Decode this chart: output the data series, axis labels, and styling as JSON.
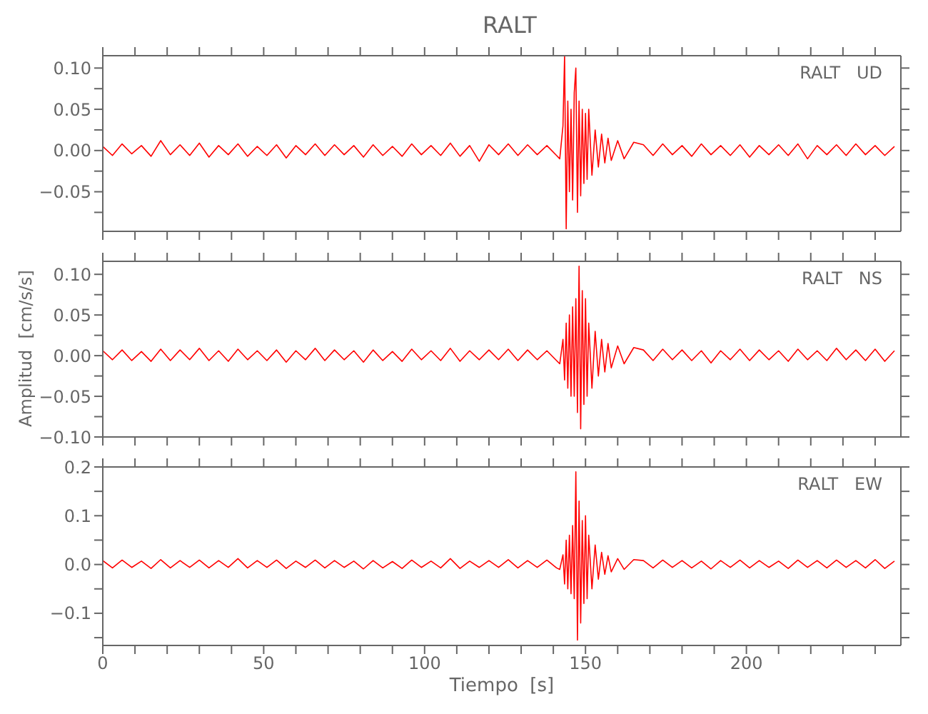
{
  "chart_data": [
    {
      "type": "line",
      "title": "RALT",
      "annotations": [
        "RALT   UD"
      ],
      "tick_labels": "y",
      "x": [
        0,
        3,
        6,
        9,
        12,
        15,
        18,
        21,
        24,
        27,
        30,
        33,
        36,
        39,
        42,
        45,
        48,
        51,
        54,
        57,
        60,
        63,
        66,
        69,
        72,
        75,
        78,
        81,
        84,
        87,
        90,
        93,
        96,
        99,
        102,
        105,
        108,
        111,
        114,
        117,
        120,
        123,
        126,
        129,
        132,
        135,
        138,
        141,
        142,
        143,
        143.5,
        144,
        144.5,
        145,
        145.5,
        146,
        146.5,
        147,
        147.5,
        148,
        148.5,
        149,
        149.5,
        150,
        150.5,
        151,
        152,
        153,
        154,
        155,
        156,
        157,
        158,
        160,
        162,
        165,
        168,
        171,
        174,
        177,
        180,
        183,
        186,
        189,
        192,
        195,
        198,
        201,
        204,
        207,
        210,
        213,
        216,
        219,
        222,
        225,
        228,
        231,
        234,
        237,
        240,
        243,
        246
      ],
      "series": [
        {
          "color": "#ff0000",
          "values": [
            0.005,
            -0.006,
            0.008,
            -0.004,
            0.006,
            -0.007,
            0.012,
            -0.005,
            0.007,
            -0.006,
            0.009,
            -0.008,
            0.006,
            -0.005,
            0.008,
            -0.007,
            0.005,
            -0.006,
            0.007,
            -0.009,
            0.006,
            -0.005,
            0.008,
            -0.006,
            0.007,
            -0.005,
            0.006,
            -0.008,
            0.007,
            -0.006,
            0.005,
            -0.007,
            0.008,
            -0.005,
            0.006,
            -0.006,
            0.009,
            -0.007,
            0.006,
            -0.013,
            0.007,
            -0.005,
            0.008,
            -0.006,
            0.007,
            -0.005,
            0.006,
            -0.006,
            -0.01,
            0.03,
            0.115,
            -0.095,
            0.06,
            -0.05,
            0.05,
            -0.06,
            0.07,
            0.1,
            -0.075,
            0.06,
            -0.055,
            0.05,
            -0.04,
            0.045,
            -0.035,
            0.05,
            -0.03,
            0.025,
            -0.02,
            0.02,
            -0.015,
            0.015,
            -0.012,
            0.012,
            -0.01,
            0.01,
            0.007,
            -0.006,
            0.008,
            -0.005,
            0.006,
            -0.007,
            0.008,
            -0.005,
            0.006,
            -0.006,
            0.007,
            -0.008,
            0.006,
            -0.005,
            0.007,
            -0.006,
            0.008,
            -0.01,
            0.006,
            -0.005,
            0.007,
            -0.006,
            0.008,
            -0.005,
            0.006,
            -0.006,
            0.005
          ]
        }
      ],
      "xlim": [
        0,
        248
      ],
      "xticks": [
        {
          "value": 0,
          "label": null
        },
        {
          "value": 10,
          "label": null
        },
        {
          "value": 20,
          "label": null
        },
        {
          "value": 30,
          "label": null
        },
        {
          "value": 40,
          "label": null
        },
        {
          "value": 50,
          "label": null
        },
        {
          "value": 60,
          "label": null
        },
        {
          "value": 70,
          "label": null
        },
        {
          "value": 80,
          "label": null
        },
        {
          "value": 90,
          "label": null
        },
        {
          "value": 100,
          "label": null
        },
        {
          "value": 110,
          "label": null
        },
        {
          "value": 120,
          "label": null
        },
        {
          "value": 130,
          "label": null
        },
        {
          "value": 140,
          "label": null
        },
        {
          "value": 150,
          "label": null
        },
        {
          "value": 160,
          "label": null
        },
        {
          "value": 170,
          "label": null
        },
        {
          "value": 180,
          "label": null
        },
        {
          "value": 190,
          "label": null
        },
        {
          "value": 200,
          "label": null
        },
        {
          "value": 210,
          "label": null
        },
        {
          "value": 220,
          "label": null
        },
        {
          "value": 230,
          "label": null
        },
        {
          "value": 240,
          "label": null
        }
      ],
      "ylim": [
        -0.098,
        0.115
      ],
      "yticks": [
        {
          "value": -0.075,
          "label": null
        },
        {
          "value": -0.05,
          "label": "−0.05"
        },
        {
          "value": -0.025,
          "label": null
        },
        {
          "value": 0,
          "label": "0.00"
        },
        {
          "value": 0.025,
          "label": null
        },
        {
          "value": 0.05,
          "label": "0.05"
        },
        {
          "value": 0.075,
          "label": null
        },
        {
          "value": 0.1,
          "label": "0.10"
        }
      ]
    },
    {
      "type": "line",
      "ylabel": "Amplitud  [cm/s/s]",
      "annotations": [
        "RALT   NS"
      ],
      "tick_labels": "y",
      "x": [
        0,
        3,
        6,
        9,
        12,
        15,
        18,
        21,
        24,
        27,
        30,
        33,
        36,
        39,
        42,
        45,
        48,
        51,
        54,
        57,
        60,
        63,
        66,
        69,
        72,
        75,
        78,
        81,
        84,
        87,
        90,
        93,
        96,
        99,
        102,
        105,
        108,
        111,
        114,
        117,
        120,
        123,
        126,
        129,
        132,
        135,
        138,
        141,
        142,
        143,
        143.5,
        144,
        144.5,
        145,
        145.5,
        146,
        146.5,
        147,
        147.5,
        148,
        148.5,
        149,
        149.5,
        150,
        150.5,
        151,
        152,
        153,
        154,
        155,
        156,
        157,
        158,
        160,
        162,
        165,
        168,
        171,
        174,
        177,
        180,
        183,
        186,
        189,
        192,
        195,
        198,
        201,
        204,
        207,
        210,
        213,
        216,
        219,
        222,
        225,
        228,
        231,
        234,
        237,
        240,
        243,
        246
      ],
      "series": [
        {
          "color": "#ff0000",
          "values": [
            0.006,
            -0.005,
            0.007,
            -0.006,
            0.005,
            -0.007,
            0.008,
            -0.006,
            0.007,
            -0.005,
            0.009,
            -0.006,
            0.006,
            -0.007,
            0.008,
            -0.005,
            0.006,
            -0.006,
            0.007,
            -0.008,
            0.006,
            -0.005,
            0.009,
            -0.006,
            0.007,
            -0.005,
            0.006,
            -0.008,
            0.007,
            -0.006,
            0.005,
            -0.007,
            0.008,
            -0.005,
            0.006,
            -0.006,
            0.009,
            -0.007,
            0.006,
            -0.005,
            0.007,
            -0.005,
            0.008,
            -0.006,
            0.007,
            -0.005,
            0.006,
            -0.006,
            -0.01,
            0.02,
            -0.03,
            0.04,
            -0.04,
            0.05,
            -0.05,
            0.06,
            -0.05,
            0.07,
            -0.07,
            0.11,
            -0.09,
            0.08,
            -0.06,
            0.07,
            -0.05,
            0.04,
            -0.04,
            0.03,
            -0.025,
            0.02,
            -0.02,
            0.015,
            -0.015,
            0.012,
            -0.01,
            0.01,
            0.007,
            -0.006,
            0.008,
            -0.005,
            0.007,
            -0.006,
            0.006,
            -0.009,
            0.006,
            -0.005,
            0.008,
            -0.006,
            0.007,
            -0.005,
            0.006,
            -0.007,
            0.008,
            -0.005,
            0.006,
            -0.006,
            0.009,
            -0.005,
            0.007,
            -0.006,
            0.008,
            -0.007,
            0.006
          ]
        }
      ],
      "xlim": [
        0,
        248
      ],
      "xticks": [
        {
          "value": 0,
          "label": null
        },
        {
          "value": 10,
          "label": null
        },
        {
          "value": 20,
          "label": null
        },
        {
          "value": 30,
          "label": null
        },
        {
          "value": 40,
          "label": null
        },
        {
          "value": 50,
          "label": null
        },
        {
          "value": 60,
          "label": null
        },
        {
          "value": 70,
          "label": null
        },
        {
          "value": 80,
          "label": null
        },
        {
          "value": 90,
          "label": null
        },
        {
          "value": 100,
          "label": null
        },
        {
          "value": 110,
          "label": null
        },
        {
          "value": 120,
          "label": null
        },
        {
          "value": 130,
          "label": null
        },
        {
          "value": 140,
          "label": null
        },
        {
          "value": 150,
          "label": null
        },
        {
          "value": 160,
          "label": null
        },
        {
          "value": 170,
          "label": null
        },
        {
          "value": 180,
          "label": null
        },
        {
          "value": 190,
          "label": null
        },
        {
          "value": 200,
          "label": null
        },
        {
          "value": 210,
          "label": null
        },
        {
          "value": 220,
          "label": null
        },
        {
          "value": 230,
          "label": null
        },
        {
          "value": 240,
          "label": null
        }
      ],
      "ylim": [
        -0.1,
        0.116
      ],
      "yticks": [
        {
          "value": -0.1,
          "label": "−0.10"
        },
        {
          "value": -0.075,
          "label": null
        },
        {
          "value": -0.05,
          "label": "−0.05"
        },
        {
          "value": -0.025,
          "label": null
        },
        {
          "value": 0,
          "label": "0.00"
        },
        {
          "value": 0.025,
          "label": null
        },
        {
          "value": 0.05,
          "label": "0.05"
        },
        {
          "value": 0.075,
          "label": null
        },
        {
          "value": 0.1,
          "label": "0.10"
        }
      ]
    },
    {
      "type": "line",
      "xlabel": "Tiempo  [s]",
      "annotations": [
        "RALT   EW"
      ],
      "x": [
        0,
        3,
        6,
        9,
        12,
        15,
        18,
        21,
        24,
        27,
        30,
        33,
        36,
        39,
        42,
        45,
        48,
        51,
        54,
        57,
        60,
        63,
        66,
        69,
        72,
        75,
        78,
        81,
        84,
        87,
        90,
        93,
        96,
        99,
        102,
        105,
        108,
        111,
        114,
        117,
        120,
        123,
        126,
        129,
        132,
        135,
        138,
        141,
        142,
        143,
        143.5,
        144,
        144.5,
        145,
        145.5,
        146,
        146.5,
        147,
        147.5,
        148,
        148.5,
        149,
        149.5,
        150,
        150.5,
        151,
        152,
        153,
        154,
        155,
        156,
        157,
        158,
        160,
        162,
        165,
        168,
        171,
        174,
        177,
        180,
        183,
        186,
        189,
        192,
        195,
        198,
        201,
        204,
        207,
        210,
        213,
        216,
        219,
        222,
        225,
        228,
        231,
        234,
        237,
        240,
        243,
        246
      ],
      "series": [
        {
          "color": "#ff0000",
          "values": [
            0.008,
            -0.007,
            0.009,
            -0.006,
            0.007,
            -0.008,
            0.01,
            -0.007,
            0.008,
            -0.006,
            0.009,
            -0.007,
            0.008,
            -0.006,
            0.012,
            -0.007,
            0.008,
            -0.006,
            0.009,
            -0.008,
            0.007,
            -0.006,
            0.009,
            -0.007,
            0.008,
            -0.006,
            0.007,
            -0.009,
            0.008,
            -0.007,
            0.006,
            -0.008,
            0.009,
            -0.006,
            0.007,
            -0.007,
            0.012,
            -0.008,
            0.007,
            -0.006,
            0.008,
            -0.006,
            0.01,
            -0.007,
            0.008,
            -0.006,
            0.009,
            -0.007,
            -0.01,
            0.02,
            -0.04,
            0.05,
            -0.05,
            0.06,
            -0.06,
            0.08,
            -0.07,
            0.19,
            -0.155,
            0.13,
            -0.12,
            0.09,
            -0.08,
            0.1,
            -0.07,
            0.06,
            -0.05,
            0.04,
            -0.03,
            0.025,
            -0.02,
            0.018,
            -0.015,
            0.012,
            -0.01,
            0.01,
            0.008,
            -0.007,
            0.009,
            -0.006,
            0.008,
            -0.007,
            0.007,
            -0.009,
            0.008,
            -0.006,
            0.009,
            -0.007,
            0.008,
            -0.006,
            0.007,
            -0.008,
            0.009,
            -0.006,
            0.008,
            -0.007,
            0.009,
            -0.006,
            0.008,
            -0.007,
            0.01,
            -0.008,
            0.007
          ]
        }
      ],
      "xlim": [
        0,
        248
      ],
      "xticks": [
        {
          "value": 0,
          "label": "0"
        },
        {
          "value": 10,
          "label": null
        },
        {
          "value": 20,
          "label": null
        },
        {
          "value": 30,
          "label": null
        },
        {
          "value": 40,
          "label": null
        },
        {
          "value": 50,
          "label": "50"
        },
        {
          "value": 60,
          "label": null
        },
        {
          "value": 70,
          "label": null
        },
        {
          "value": 80,
          "label": null
        },
        {
          "value": 90,
          "label": null
        },
        {
          "value": 100,
          "label": "100"
        },
        {
          "value": 110,
          "label": null
        },
        {
          "value": 120,
          "label": null
        },
        {
          "value": 130,
          "label": null
        },
        {
          "value": 140,
          "label": null
        },
        {
          "value": 150,
          "label": "150"
        },
        {
          "value": 160,
          "label": null
        },
        {
          "value": 170,
          "label": null
        },
        {
          "value": 180,
          "label": null
        },
        {
          "value": 190,
          "label": null
        },
        {
          "value": 200,
          "label": "200"
        },
        {
          "value": 210,
          "label": null
        },
        {
          "value": 220,
          "label": null
        },
        {
          "value": 230,
          "label": null
        },
        {
          "value": 240,
          "label": null
        }
      ],
      "ylim": [
        -0.166,
        0.2
      ],
      "yticks": [
        {
          "value": -0.15,
          "label": null
        },
        {
          "value": -0.1,
          "label": "−0.1"
        },
        {
          "value": -0.05,
          "label": null
        },
        {
          "value": 0,
          "label": "0.0"
        },
        {
          "value": 0.05,
          "label": null
        },
        {
          "value": 0.1,
          "label": "0.1"
        },
        {
          "value": 0.15,
          "label": null
        },
        {
          "value": 0.2,
          "label": "0.2"
        }
      ]
    }
  ]
}
